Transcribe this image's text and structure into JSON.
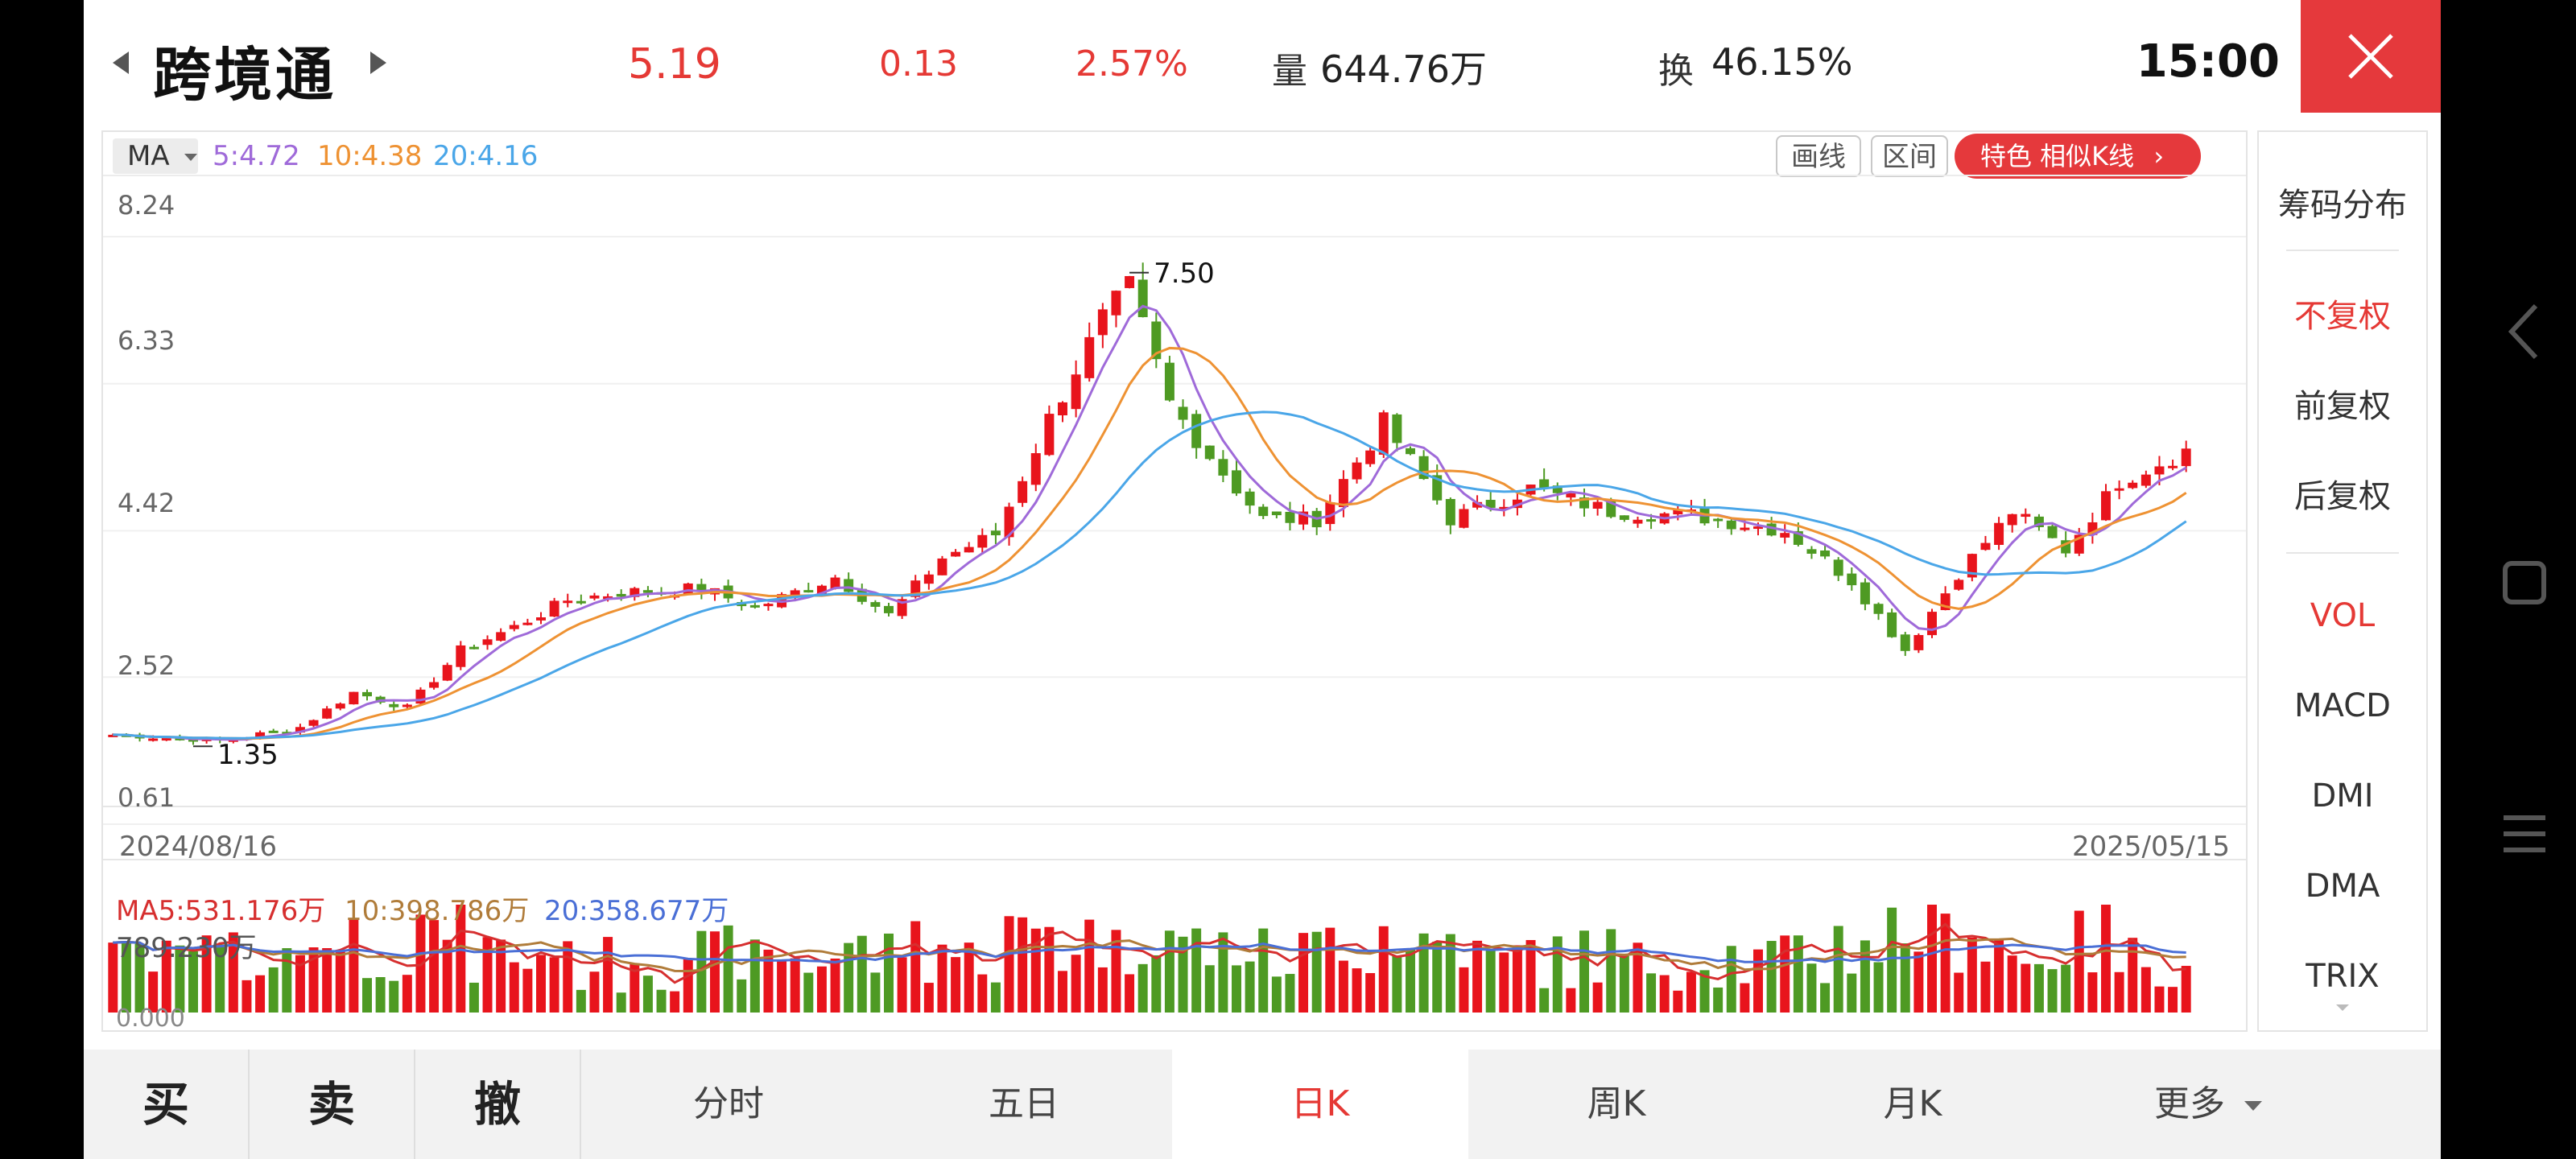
{
  "header": {
    "stock_name": "跨境通",
    "price": "5.19",
    "change": "0.13",
    "change_pct": "2.57%",
    "volume_label": "量",
    "volume_value": "644.76万",
    "turnover_label": "换",
    "turnover_value": "46.15%",
    "time": "15:00",
    "close_icon": "close-icon",
    "prev_icon": "caret-left-icon",
    "next_icon": "caret-right-icon"
  },
  "chart_toolbar": {
    "ma_label": "MA",
    "ma5": "5:4.72",
    "ma10": "10:4.38",
    "ma20": "20:4.16",
    "draw_button": "画线",
    "range_button": "区间",
    "promo_label": "特色  相似K线",
    "promo_arrow": "›"
  },
  "colors": {
    "up": "#e8141c",
    "down": "#4e9a23",
    "ma5": "#9f6ad9",
    "ma10": "#ee9233",
    "ma20": "#4aa6e8",
    "vol_ma5": "#d62f2f",
    "vol_ma10": "#b07c3a",
    "vol_ma20": "#4a6fd6",
    "accent": "#e5393c"
  },
  "price_axis": [
    "8.24",
    "6.33",
    "4.42",
    "2.52",
    "0.61"
  ],
  "annotations": {
    "high": "7.50",
    "low": "1.35"
  },
  "dates": {
    "start": "2024/08/16",
    "end": "2025/05/15"
  },
  "volume": {
    "ma5": "MA5:531.176万",
    "ma10": "10:398.786万",
    "ma20": "20:358.677万",
    "max": "789.230万",
    "min": "0.000"
  },
  "chart_data": {
    "type": "candlestick",
    "period": "日K",
    "x_range": [
      "2024/08/16",
      "2025/05/15"
    ],
    "ylim": [
      0.61,
      8.24
    ],
    "y_ticks": [
      8.24,
      6.33,
      4.42,
      2.52,
      0.61
    ],
    "high": 7.5,
    "low": 1.35,
    "last_close": 5.19,
    "ma": {
      "ma5": 4.72,
      "ma10": 4.38,
      "ma20": 4.16
    },
    "volume_ma": {
      "ma5": 531.176,
      "ma10": 398.786,
      "ma20": 358.677,
      "unit": "万"
    },
    "volume_max": 789.23,
    "anchors": [
      [
        0,
        1.5
      ],
      [
        8,
        1.42
      ],
      [
        14,
        1.6
      ],
      [
        18,
        2.05
      ],
      [
        22,
        1.85
      ],
      [
        26,
        2.6
      ],
      [
        30,
        2.9
      ],
      [
        34,
        3.25
      ],
      [
        38,
        3.35
      ],
      [
        44,
        3.4
      ],
      [
        48,
        3.15
      ],
      [
        54,
        3.55
      ],
      [
        58,
        3.05
      ],
      [
        62,
        3.8
      ],
      [
        66,
        4.1
      ],
      [
        70,
        5.6
      ],
      [
        74,
        6.9
      ],
      [
        76,
        7.3
      ],
      [
        79,
        5.8
      ],
      [
        83,
        4.9
      ],
      [
        86,
        4.3
      ],
      [
        90,
        4.3
      ],
      [
        95,
        5.55
      ],
      [
        100,
        4.3
      ],
      [
        106,
        4.7
      ],
      [
        112,
        4.4
      ],
      [
        118,
        4.35
      ],
      [
        125,
        4.15
      ],
      [
        130,
        3.5
      ],
      [
        134,
        2.6
      ],
      [
        138,
        3.6
      ],
      [
        142,
        4.4
      ],
      [
        146,
        3.9
      ],
      [
        150,
        4.8
      ],
      [
        155,
        5.19
      ]
    ]
  },
  "side_panel": {
    "chips": "筹码分布",
    "adj_none": "不复权",
    "adj_forward": "前复权",
    "adj_backward": "后复权",
    "vol": "VOL",
    "macd": "MACD",
    "dmi": "DMI",
    "dma": "DMA",
    "trix": "TRIX"
  },
  "bottom_bar": {
    "buy": "买",
    "sell": "卖",
    "cancel": "撤",
    "tab_intraday": "分时",
    "tab_5day": "五日",
    "tab_daily": "日K",
    "tab_weekly": "周K",
    "tab_monthly": "月K",
    "tab_more": "更多"
  },
  "system_nav": {
    "back_icon": "chevron-left-icon",
    "home_icon": "square-icon",
    "menu_icon": "menu-icon"
  }
}
